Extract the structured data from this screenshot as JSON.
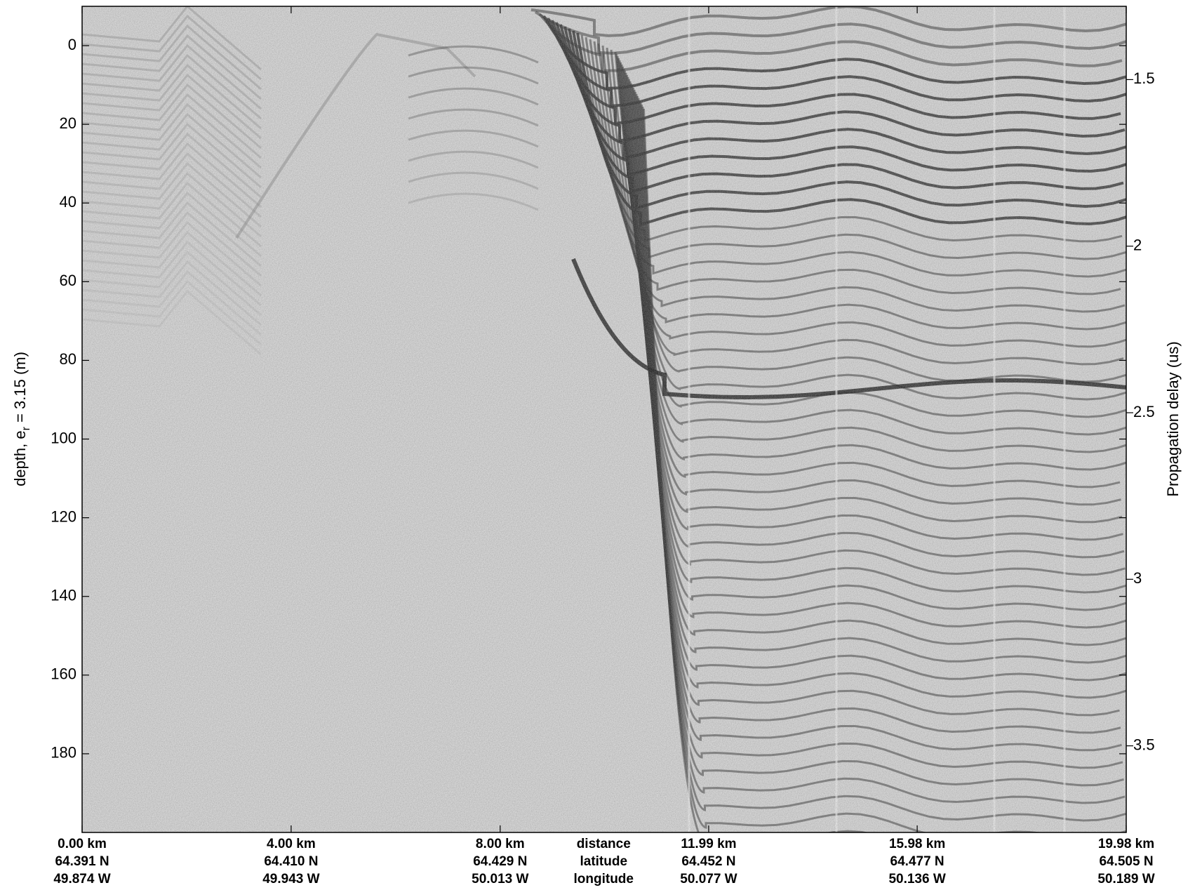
{
  "chart_data": {
    "type": "echogram",
    "ylabel": {
      "text": "depth, e",
      "sub": "r",
      "rest": " = 3.15 (m)"
    },
    "y2label": "Propagation delay (us)",
    "ylim": [
      -10,
      200
    ],
    "y_reversed": true,
    "yticks": [
      0,
      20,
      40,
      60,
      80,
      100,
      120,
      140,
      160,
      180
    ],
    "y2lim": [
      1.28,
      3.76
    ],
    "y2ticks": [
      1.5,
      2,
      2.5,
      3,
      3.5
    ],
    "xlim": [
      0,
      19.98
    ],
    "x_row_labels": [
      "distance",
      "latitude",
      "longitude"
    ],
    "x_row_labels_at": 9.98,
    "xticks": [
      {
        "value": 0,
        "label": "0.00 km",
        "latitude": "64.391 N",
        "longitude": "49.874 W"
      },
      {
        "value": 4,
        "label": "4.00 km",
        "latitude": "64.410 N",
        "longitude": "49.943 W"
      },
      {
        "value": 8,
        "label": "8.00 km",
        "latitude": "64.429 N",
        "longitude": "50.013 W"
      },
      {
        "value": 11.99,
        "label": "11.99 km",
        "latitude": "64.452 N",
        "longitude": "50.077 W"
      },
      {
        "value": 15.98,
        "label": "15.98 km",
        "latitude": "64.477 N",
        "longitude": "50.136 W"
      },
      {
        "value": 19.98,
        "label": "19.98 km",
        "latitude": "64.505 N",
        "longitude": "50.189 W"
      }
    ]
  }
}
